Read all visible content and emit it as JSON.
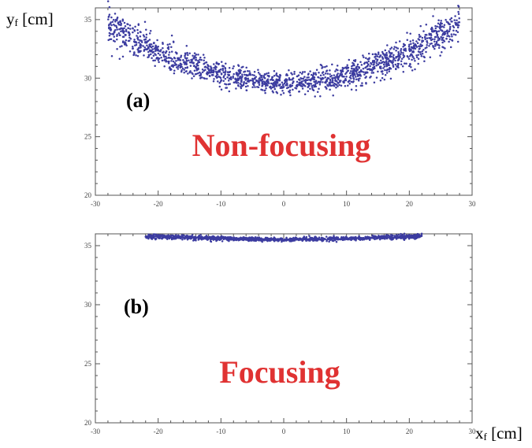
{
  "figure": {
    "y_axis_title": {
      "main": "y",
      "sub": "f",
      "unit": " [cm]"
    },
    "x_axis_title": {
      "main": "x",
      "sub": "f",
      "unit": " [cm]"
    }
  },
  "colors": {
    "points": "#3c3ca0",
    "annotation": "#e03232",
    "frame": "#555555",
    "label": "#000000"
  },
  "chart_data": [
    {
      "type": "scatter",
      "panel_label": "(a)",
      "annotation": "Non-focusing",
      "xlim": [
        -30,
        30
      ],
      "ylim": [
        20,
        36
      ],
      "x_ticks": [
        -30,
        -20,
        -10,
        0,
        10,
        20,
        30
      ],
      "y_ticks": [
        20,
        25,
        30,
        35
      ],
      "series": [
        {
          "x": [
            -28.0,
            -24.0,
            -20.0,
            -16.0,
            -12.0,
            -8.0,
            -4.0,
            0.0,
            4.0,
            8.0,
            12.0,
            16.0,
            20.0,
            24.0,
            28.0
          ],
          "y": [
            34.6,
            33.3,
            32.2,
            31.3,
            30.6,
            30.0,
            29.7,
            29.6,
            29.7,
            30.0,
            30.6,
            31.3,
            32.2,
            33.4,
            34.7
          ]
        }
      ]
    },
    {
      "type": "scatter",
      "panel_label": "(b)",
      "annotation": "Focusing",
      "xlim": [
        -30,
        30
      ],
      "ylim": [
        20,
        36
      ],
      "x_ticks": [
        -30,
        -20,
        -10,
        0,
        10,
        20,
        30
      ],
      "y_ticks": [
        20,
        25,
        30,
        35
      ],
      "series": [
        {
          "x": [
            -22.0,
            -16.0,
            -10.0,
            -4.0,
            0.0,
            4.0,
            10.0,
            16.0,
            22.0
          ],
          "y": [
            35.8,
            35.7,
            35.6,
            35.55,
            35.5,
            35.55,
            35.6,
            35.7,
            35.8
          ]
        }
      ]
    }
  ]
}
